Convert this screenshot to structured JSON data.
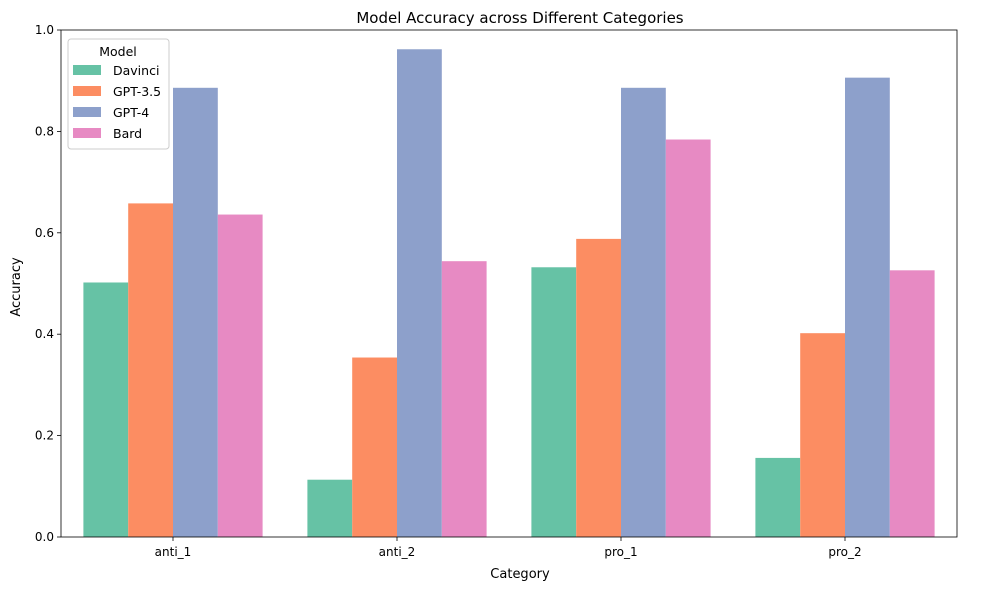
{
  "chart_data": {
    "type": "bar",
    "title": "Model Accuracy across Different Categories",
    "xlabel": "Category",
    "ylabel": "Accuracy",
    "categories": [
      "anti_1",
      "anti_2",
      "pro_1",
      "pro_2"
    ],
    "series": [
      {
        "name": "Davinci",
        "color": "#66c2a5",
        "values": [
          0.502,
          0.113,
          0.532,
          0.156
        ]
      },
      {
        "name": "GPT-3.5",
        "color": "#fc8d62",
        "values": [
          0.658,
          0.354,
          0.588,
          0.402
        ]
      },
      {
        "name": "GPT-4",
        "color": "#8da0cb",
        "values": [
          0.886,
          0.962,
          0.886,
          0.906
        ]
      },
      {
        "name": "Bard",
        "color": "#e78ac3",
        "values": [
          0.636,
          0.544,
          0.784,
          0.526
        ]
      }
    ],
    "ylim": [
      0,
      1.0
    ],
    "yticks": [
      0.0,
      0.2,
      0.4,
      0.6,
      0.8,
      1.0
    ],
    "ytick_labels": [
      "0.0",
      "0.2",
      "0.4",
      "0.6",
      "0.8",
      "1.0"
    ],
    "grid": false,
    "legend": {
      "title": "Model",
      "position": "top-left"
    }
  }
}
